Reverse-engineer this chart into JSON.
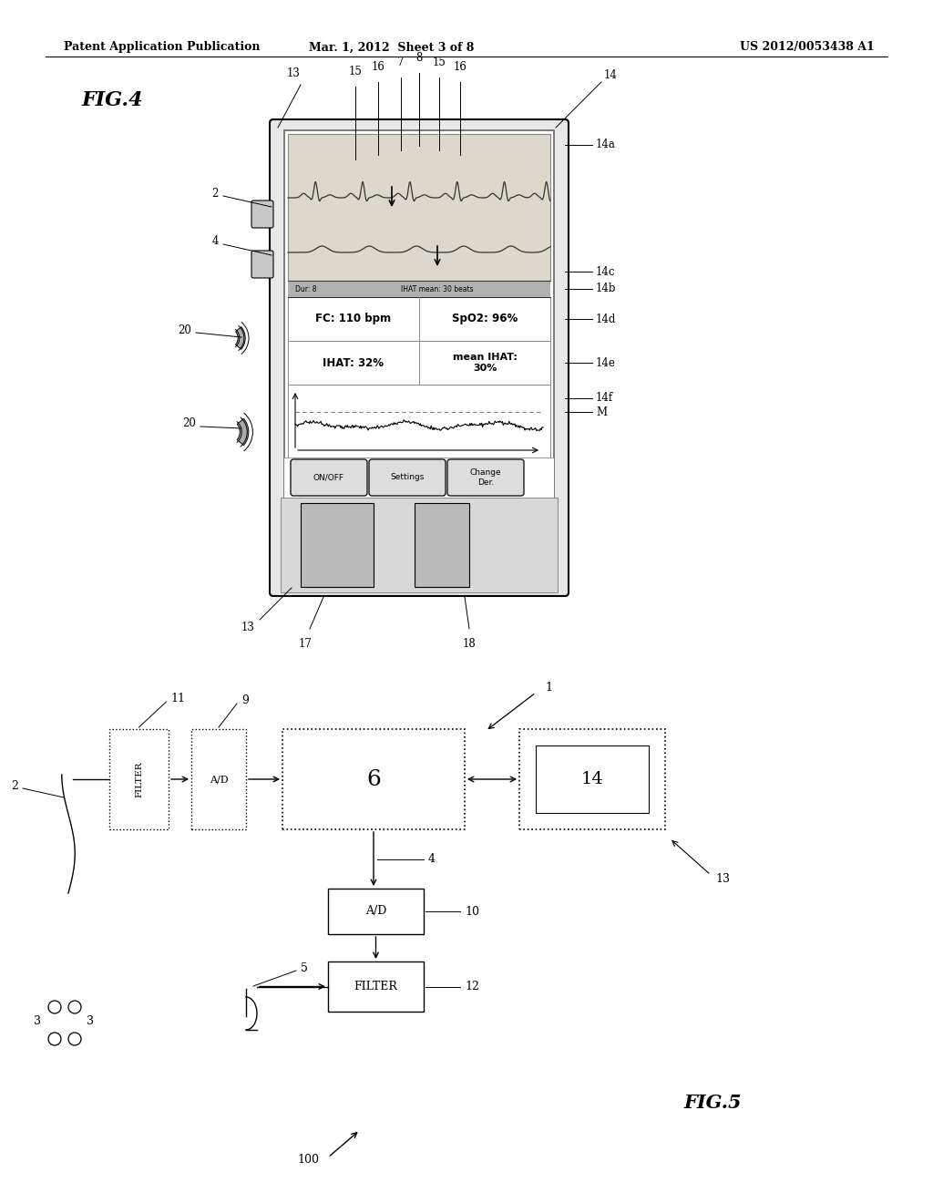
{
  "bg_color": "#ffffff",
  "header_left": "Patent Application Publication",
  "header_center": "Mar. 1, 2012  Sheet 3 of 8",
  "header_right": "US 2012/0053438 A1",
  "fig4_label": "FIG.4",
  "fig5_label": "FIG.5"
}
